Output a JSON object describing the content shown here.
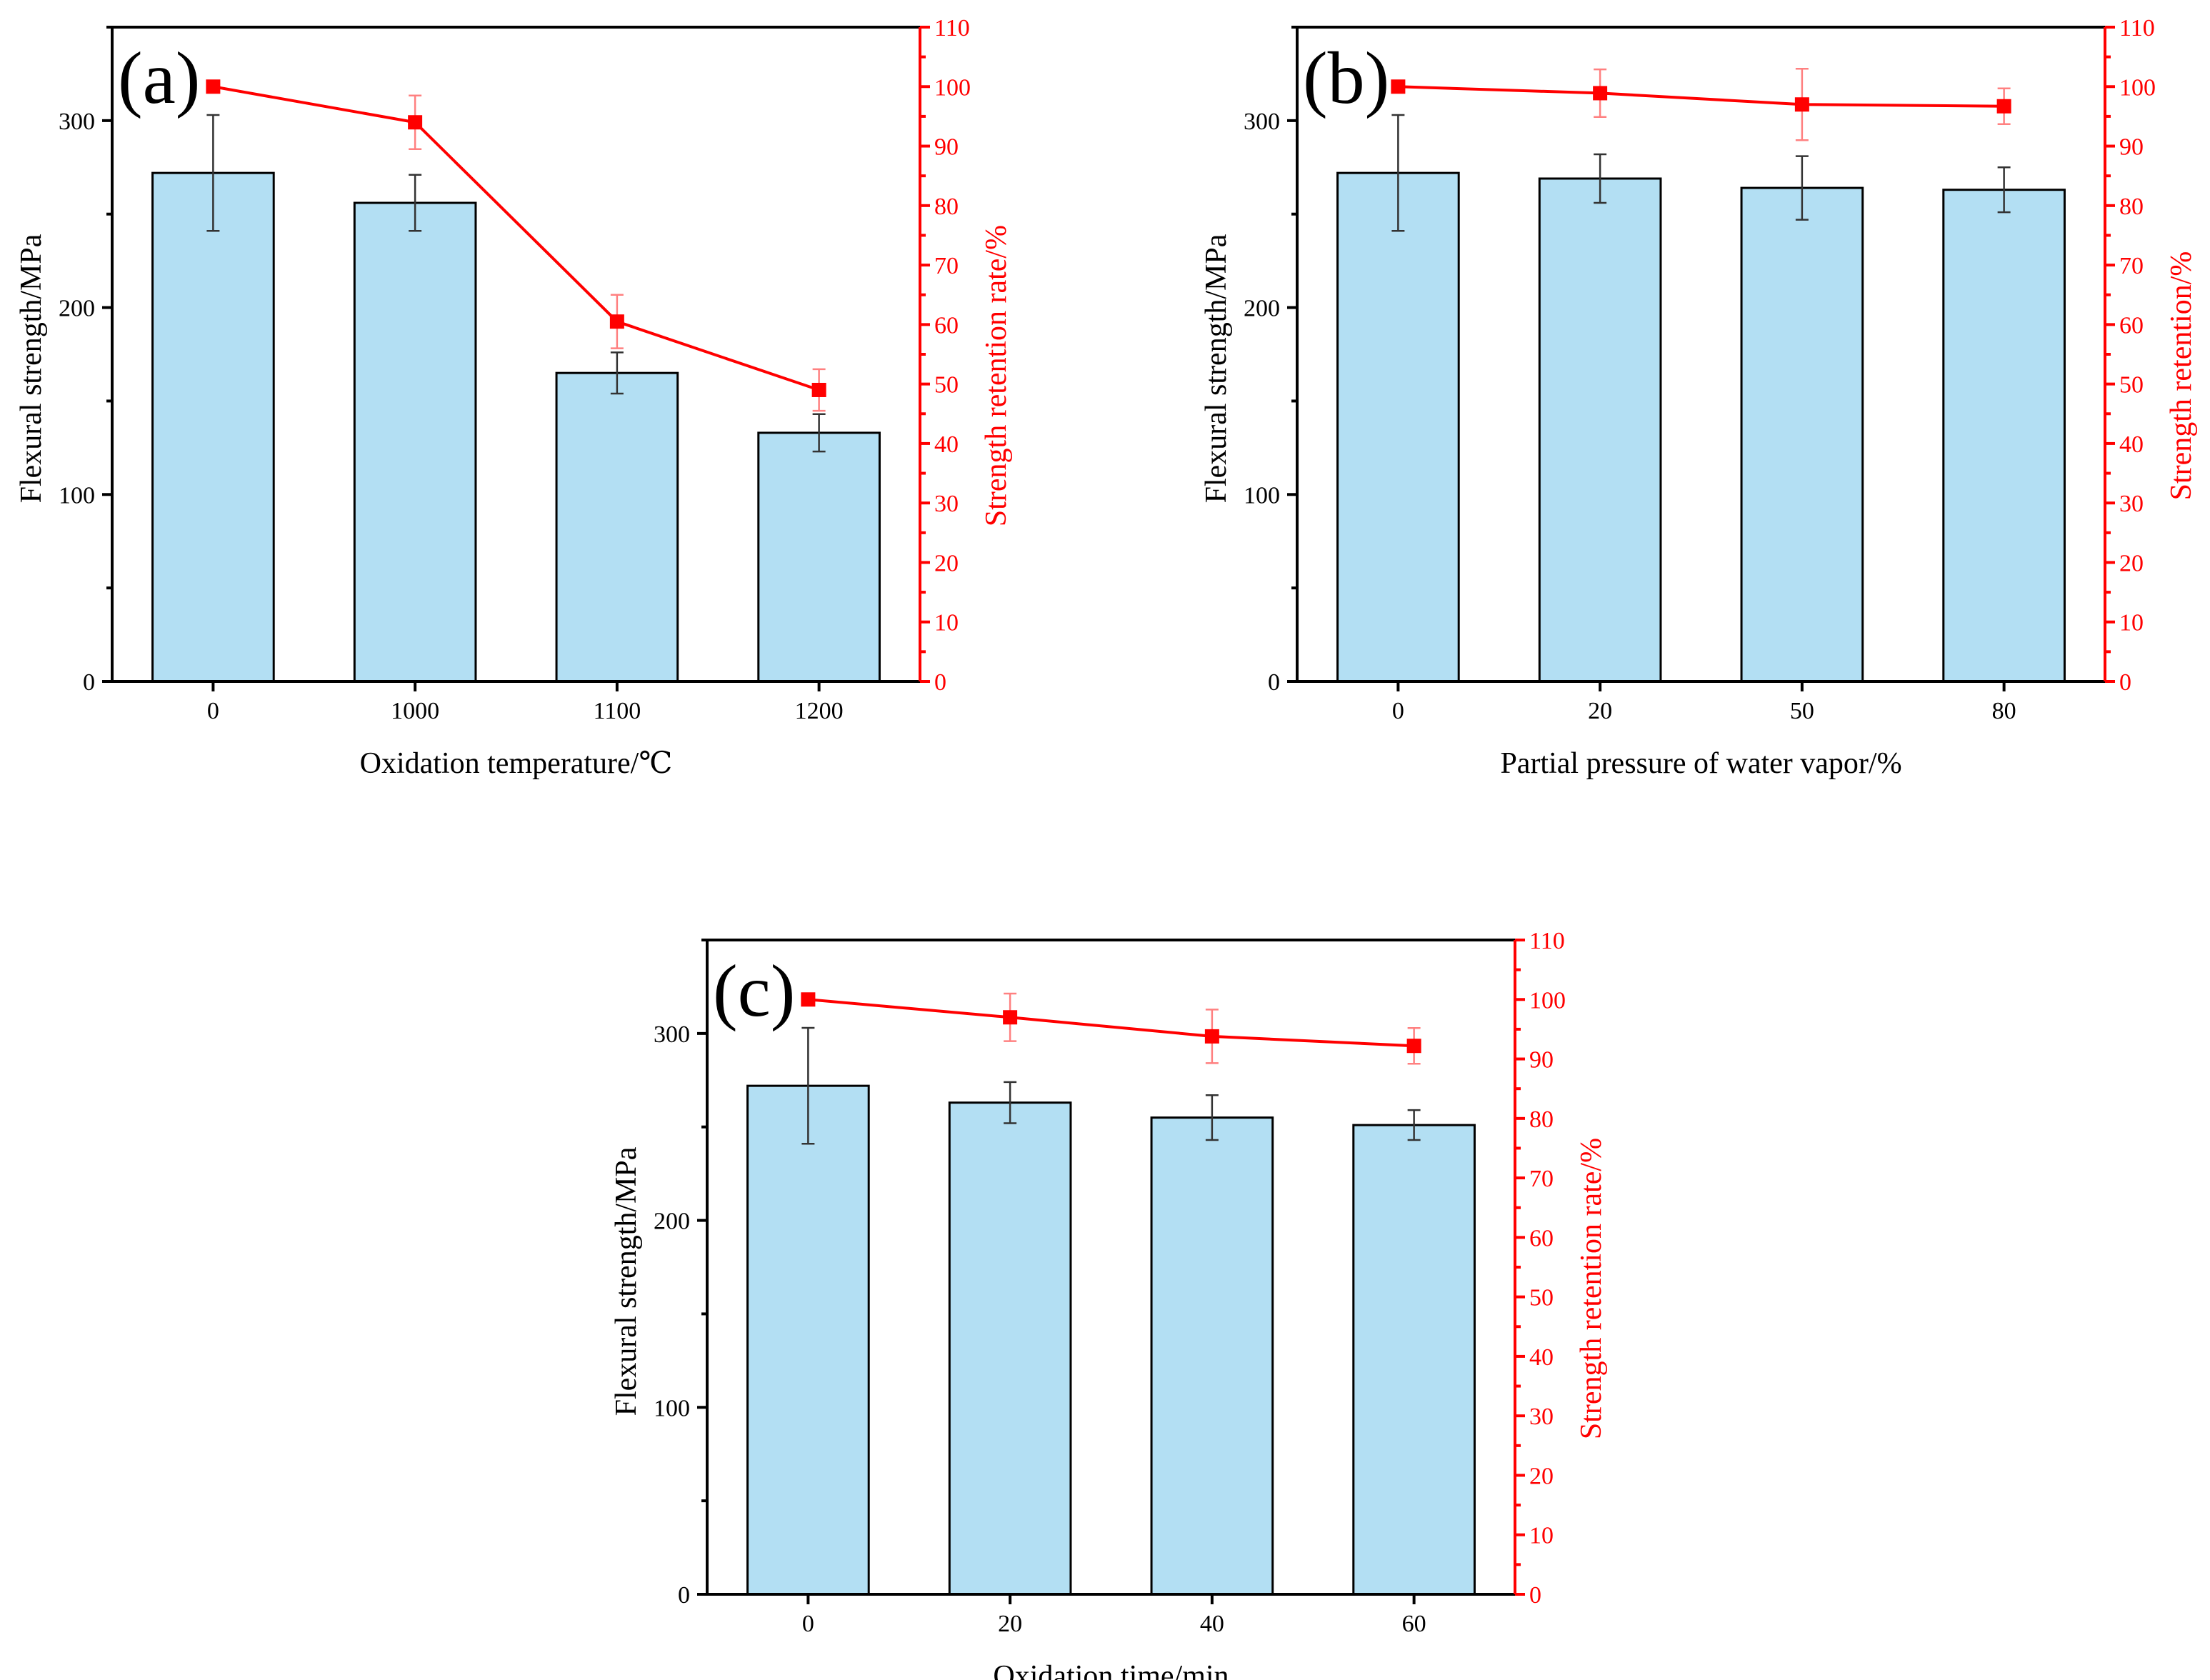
{
  "chart_data": [
    {
      "type": "bar",
      "panel_label": "(a)",
      "categories": [
        "0",
        "1000",
        "1100",
        "1200"
      ],
      "xlabel": "Oxidation temperature/℃",
      "ylabel": "Flexural strength/MPa",
      "ylabel_right": "Strength retention rate/%",
      "ylim": [
        0,
        350
      ],
      "yticks": [
        0,
        100,
        200,
        300
      ],
      "ylim_right": [
        0,
        110
      ],
      "yticks_right": [
        0,
        10,
        20,
        30,
        40,
        50,
        60,
        70,
        80,
        90,
        100,
        110
      ],
      "series": [
        {
          "kind": "bar",
          "axis": "left",
          "values": [
            272,
            256,
            165,
            133
          ],
          "errors": [
            31,
            15,
            11,
            10
          ]
        },
        {
          "kind": "line",
          "axis": "right",
          "values": [
            100,
            94,
            60.5,
            49
          ],
          "errors": [
            0,
            4.5,
            4.5,
            3.5
          ]
        }
      ],
      "colors": {
        "bar": "#b3dff3",
        "line": "#ff0000",
        "right_axis": "#ff0000"
      }
    },
    {
      "type": "bar",
      "panel_label": "(b)",
      "categories": [
        "0",
        "20",
        "50",
        "80"
      ],
      "xlabel": "Partial pressure of water vapor/%",
      "ylabel": "Flexural strength/MPa",
      "ylabel_right": "Strength retention/%",
      "ylim": [
        0,
        350
      ],
      "yticks": [
        0,
        100,
        200,
        300
      ],
      "ylim_right": [
        0,
        110
      ],
      "yticks_right": [
        0,
        10,
        20,
        30,
        40,
        50,
        60,
        70,
        80,
        90,
        100,
        110
      ],
      "series": [
        {
          "kind": "bar",
          "axis": "left",
          "values": [
            272,
            269,
            264,
            263
          ],
          "errors": [
            31,
            13,
            17,
            12
          ]
        },
        {
          "kind": "line",
          "axis": "right",
          "values": [
            100,
            98.9,
            97,
            96.7
          ],
          "errors": [
            0,
            4,
            6,
            3
          ]
        }
      ],
      "colors": {
        "bar": "#b3dff3",
        "line": "#ff0000",
        "right_axis": "#ff0000"
      }
    },
    {
      "type": "bar",
      "panel_label": "(c)",
      "categories": [
        "0",
        "20",
        "40",
        "60"
      ],
      "xlabel": "Oxidation time/min",
      "ylabel": "Flexural strength/MPa",
      "ylabel_right": "Strength retention rate/%",
      "ylim": [
        0,
        350
      ],
      "yticks": [
        0,
        100,
        200,
        300
      ],
      "ylim_right": [
        0,
        110
      ],
      "yticks_right": [
        0,
        10,
        20,
        30,
        40,
        50,
        60,
        70,
        80,
        90,
        100,
        110
      ],
      "series": [
        {
          "kind": "bar",
          "axis": "left",
          "values": [
            272,
            263,
            255,
            251
          ],
          "errors": [
            31,
            11,
            12,
            8
          ]
        },
        {
          "kind": "line",
          "axis": "right",
          "values": [
            100,
            97,
            93.8,
            92.2
          ],
          "errors": [
            0,
            4,
            4.5,
            3
          ]
        }
      ],
      "colors": {
        "bar": "#b3dff3",
        "line": "#ff0000",
        "right_axis": "#ff0000"
      }
    }
  ]
}
